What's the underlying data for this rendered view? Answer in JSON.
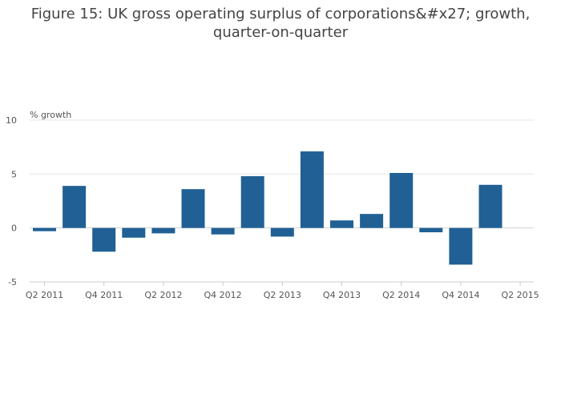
{
  "chart_data": {
    "type": "bar",
    "title_lines": [
      "Figure 15: UK gross operating surplus of corporations&#x27; growth,",
      "quarter-on-quarter"
    ],
    "ylabel": "% growth",
    "ylim": [
      -5,
      10
    ],
    "yticks": [
      -5,
      0,
      5,
      10
    ],
    "grid": true,
    "xtick_labels": [
      "Q2 2011",
      "Q4 2011",
      "Q2 2012",
      "Q4 2012",
      "Q2 2013",
      "Q4 2013",
      "Q2 2014",
      "Q4 2014",
      "Q2 2015"
    ],
    "categories": [
      "Q2 2011",
      "Q3 2011",
      "Q4 2011",
      "Q1 2012",
      "Q2 2012",
      "Q3 2012",
      "Q4 2012",
      "Q1 2013",
      "Q2 2013",
      "Q3 2013",
      "Q4 2013",
      "Q1 2014",
      "Q2 2014",
      "Q3 2014",
      "Q4 2014",
      "Q1 2015",
      "Q2 2015"
    ],
    "values": [
      -0.3,
      3.9,
      -2.2,
      -0.9,
      -0.5,
      3.6,
      -0.6,
      4.8,
      -0.8,
      7.1,
      0.7,
      1.3,
      5.1,
      -0.4,
      -3.4,
      4.0,
      null
    ],
    "color": "#206095"
  }
}
